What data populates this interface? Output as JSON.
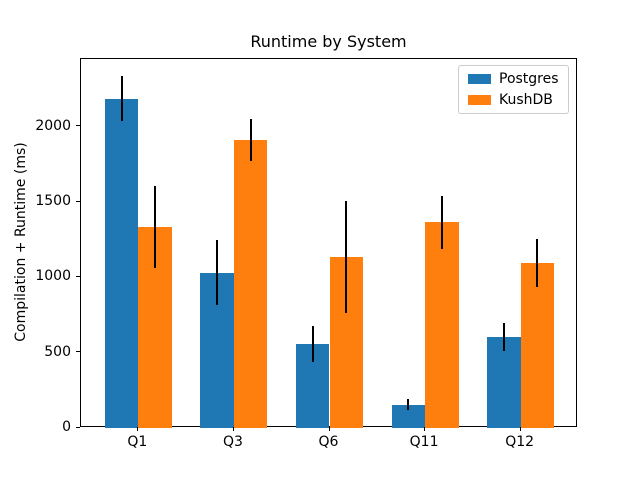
{
  "chart_data": {
    "type": "bar",
    "title": "Runtime by System",
    "xlabel": "",
    "ylabel": "Compilation + Runtime (ms)",
    "categories": [
      "Q1",
      "Q3",
      "Q6",
      "Q11",
      "Q12"
    ],
    "series": [
      {
        "name": "Postgres",
        "color": "#1f77b4",
        "values": [
          2185,
          1030,
          555,
          155,
          605
        ],
        "yerr": [
          150,
          215,
          120,
          35,
          95
        ]
      },
      {
        "name": "KushDB",
        "color": "#ff7f0e",
        "values": [
          1335,
          1910,
          1135,
          1365,
          1095
        ],
        "yerr": [
          270,
          140,
          370,
          175,
          160
        ]
      }
    ],
    "ylim": [
      0,
      2450
    ],
    "yticks": [
      0,
      500,
      1000,
      1500,
      2000
    ],
    "bar_width": 0.35,
    "grid": false,
    "legend_position": "upper right",
    "error_bar_color": "#000000",
    "spine_color": "#000000",
    "background_color": "#ffffff"
  }
}
